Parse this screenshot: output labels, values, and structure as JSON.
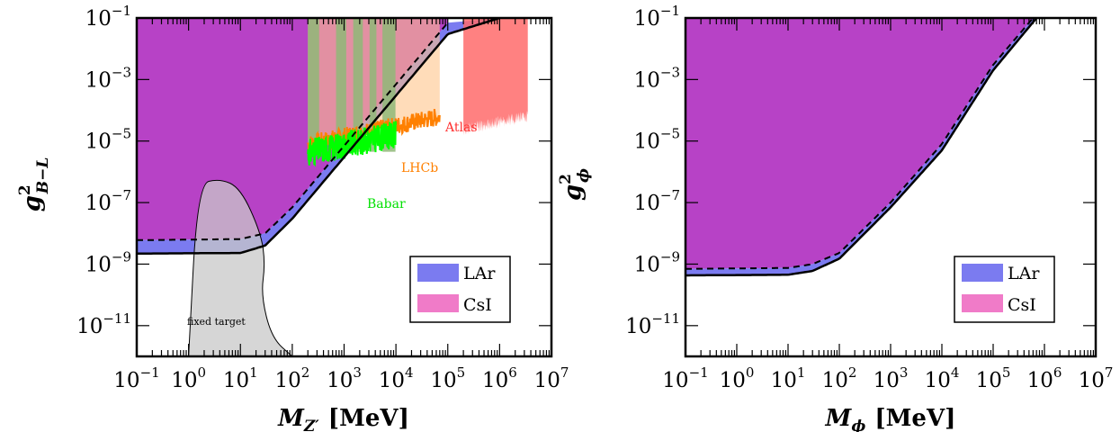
{
  "chart_data": [
    {
      "type": "area",
      "x_scale": "log",
      "y_scale": "log",
      "xlim": [
        0.1,
        10000000
      ],
      "ylim": [
        1e-12,
        0.1
      ],
      "xlabel_main": "M",
      "xlabel_sub": "Z′",
      "xlabel_unit": "[MeV]",
      "ylabel_main": "g",
      "ylabel_sub": "B−L",
      "ylabel_sup": "2",
      "x_ticks": [
        {
          "base": "10",
          "exp": "−1",
          "value": 0.1
        },
        {
          "base": "10",
          "exp": "0",
          "value": 1
        },
        {
          "base": "10",
          "exp": "1",
          "value": 10
        },
        {
          "base": "10",
          "exp": "2",
          "value": 100
        },
        {
          "base": "10",
          "exp": "3",
          "value": 1000
        },
        {
          "base": "10",
          "exp": "4",
          "value": 10000
        },
        {
          "base": "10",
          "exp": "5",
          "value": 100000
        },
        {
          "base": "10",
          "exp": "6",
          "value": 1000000
        },
        {
          "base": "10",
          "exp": "7",
          "value": 10000000
        }
      ],
      "y_ticks": [
        {
          "base": "10",
          "exp": "−1",
          "value": 0.1
        },
        {
          "base": "10",
          "exp": "−3",
          "value": 0.001
        },
        {
          "base": "10",
          "exp": "−5",
          "value": 1e-05
        },
        {
          "base": "10",
          "exp": "−7",
          "value": 1e-07
        },
        {
          "base": "10",
          "exp": "−9",
          "value": 1e-09
        },
        {
          "base": "10",
          "exp": "−11",
          "value": 1e-11
        }
      ],
      "legend": [
        {
          "label": "LAr",
          "color": "#7b7bf0"
        },
        {
          "label": "CsI",
          "color": "#f07bc8"
        }
      ],
      "legend_position": "bottom-right",
      "series": [
        {
          "name": "LAr",
          "color": "#7b7bf0",
          "x": [
            0.1,
            10,
            30,
            100,
            1000,
            10000,
            100000,
            1000000
          ],
          "y": [
            2.2e-09,
            2.3e-09,
            4e-09,
            3e-08,
            3e-06,
            0.0003,
            0.03,
            0.1
          ]
        },
        {
          "name": "CsI",
          "color": "#f07bc8",
          "x": [
            0.1,
            10,
            30,
            100,
            1000,
            10000,
            100000
          ],
          "y": [
            6e-09,
            6.5e-09,
            1e-08,
            7e-08,
            7e-06,
            0.0007,
            0.07
          ]
        }
      ],
      "constraints": [
        {
          "name": "fixed target",
          "color": "#d9d9d9",
          "x": [
            1,
            1.5,
            4,
            10,
            25,
            30,
            25,
            40,
            100
          ],
          "y": [
            1e-12,
            4e-07,
            6e-07,
            3e-07,
            1e-08,
            1e-09,
            1e-10,
            4e-12,
            1e-12
          ]
        },
        {
          "name": "Babar",
          "color": "#00ff00",
          "x_range": [
            200,
            10000
          ],
          "y_floor": 1.5e-06
        },
        {
          "name": "LHCb",
          "color": "#ff8000",
          "x_range": [
            200,
            70000
          ],
          "y_floor": 4e-06
        },
        {
          "name": "Atlas",
          "color": "#ff5a5a",
          "x_range": [
            200000,
            3500000
          ],
          "y_floor": 3e-05
        }
      ]
    },
    {
      "type": "area",
      "x_scale": "log",
      "y_scale": "log",
      "xlim": [
        0.1,
        10000000
      ],
      "ylim": [
        1e-12,
        0.1
      ],
      "xlabel_main": "M",
      "xlabel_sub": "ϕ",
      "xlabel_unit": "[MeV]",
      "ylabel_main": "g",
      "ylabel_sub": "ϕ",
      "ylabel_sup": "2",
      "x_ticks": [
        {
          "base": "10",
          "exp": "−1",
          "value": 0.1
        },
        {
          "base": "10",
          "exp": "0",
          "value": 1
        },
        {
          "base": "10",
          "exp": "1",
          "value": 10
        },
        {
          "base": "10",
          "exp": "2",
          "value": 100
        },
        {
          "base": "10",
          "exp": "3",
          "value": 1000
        },
        {
          "base": "10",
          "exp": "4",
          "value": 10000
        },
        {
          "base": "10",
          "exp": "5",
          "value": 100000
        },
        {
          "base": "10",
          "exp": "6",
          "value": 1000000
        },
        {
          "base": "10",
          "exp": "7",
          "value": 10000000
        }
      ],
      "y_ticks": [
        {
          "base": "10",
          "exp": "−1",
          "value": 0.1
        },
        {
          "base": "10",
          "exp": "−3",
          "value": 0.001
        },
        {
          "base": "10",
          "exp": "−5",
          "value": 1e-05
        },
        {
          "base": "10",
          "exp": "−7",
          "value": 1e-07
        },
        {
          "base": "10",
          "exp": "−9",
          "value": 1e-09
        },
        {
          "base": "10",
          "exp": "−11",
          "value": 1e-11
        }
      ],
      "legend": [
        {
          "label": "LAr",
          "color": "#7b7bf0"
        },
        {
          "label": "CsI",
          "color": "#f07bc8"
        }
      ],
      "legend_position": "bottom-right",
      "series": [
        {
          "name": "LAr",
          "color": "#7b7bf0",
          "x": [
            0.1,
            10,
            30,
            100,
            1000,
            10000,
            100000,
            700000
          ],
          "y": [
            4.3e-10,
            4.5e-10,
            6e-10,
            1.5e-09,
            7e-08,
            5e-06,
            0.002,
            0.1
          ]
        },
        {
          "name": "CsI",
          "color": "#f07bc8",
          "x": [
            0.1,
            10,
            30,
            100,
            1000,
            10000,
            100000,
            600000
          ],
          "y": [
            7e-10,
            7.5e-10,
            1e-09,
            2.3e-09,
            1e-07,
            8e-06,
            0.003,
            0.1
          ]
        }
      ]
    }
  ],
  "annotations": {
    "babar": "Babar",
    "lhcb": "LHCb",
    "atlas": "Atlas",
    "fixed_target": "fixed target"
  },
  "colors": {
    "excluded_region": "#b742c6",
    "lar": "#7b7bf0",
    "csi": "#f07bc8",
    "babar": "#00ff00",
    "lhcb": "#ff8000",
    "atlas": "#ff5a5a",
    "fixed_target": "#d9d9d9"
  }
}
